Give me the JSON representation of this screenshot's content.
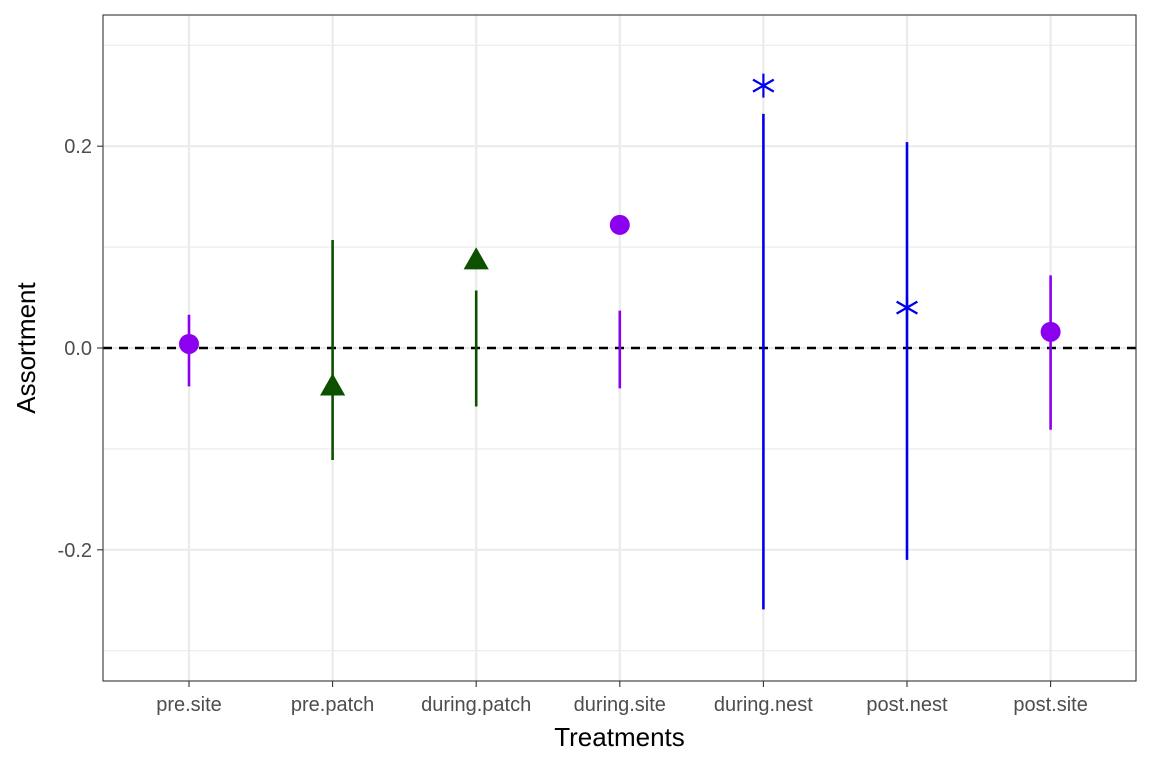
{
  "chart_data": {
    "type": "scatter",
    "xlabel": "Treatments",
    "ylabel": "Assortment",
    "ylim": [
      -0.33,
      0.33
    ],
    "y_ticks": [
      -0.2,
      0.0,
      0.2
    ],
    "y_tick_labels": [
      "-0.2",
      "0.0",
      "0.2"
    ],
    "y_minor_grid": [
      -0.3,
      -0.1,
      0.1,
      0.3
    ],
    "grid": true,
    "reference_line": {
      "y": 0.0,
      "style": "dashed",
      "color": "#000000"
    },
    "categories": [
      "pre.site",
      "pre.patch",
      "during.patch",
      "during.site",
      "during.nest",
      "post.nest",
      "post.site"
    ],
    "points": [
      {
        "category": "pre.site",
        "value": 0.004,
        "ci_low": -0.038,
        "ci_high": 0.033,
        "shape": "circle",
        "color": "#8B00EE"
      },
      {
        "category": "pre.patch",
        "value": -0.037,
        "ci_low": -0.111,
        "ci_high": 0.107,
        "shape": "triangle",
        "color": "#0B5100"
      },
      {
        "category": "during.patch",
        "value": 0.088,
        "ci_low": -0.058,
        "ci_high": 0.057,
        "shape": "triangle",
        "color": "#0B5100"
      },
      {
        "category": "during.site",
        "value": 0.122,
        "ci_low": -0.04,
        "ci_high": 0.037,
        "shape": "circle",
        "color": "#8B00EE"
      },
      {
        "category": "during.nest",
        "value": 0.26,
        "ci_low": -0.259,
        "ci_high": 0.232,
        "shape": "asterisk",
        "color": "#0000EE"
      },
      {
        "category": "post.nest",
        "value": 0.04,
        "ci_low": -0.21,
        "ci_high": 0.204,
        "shape": "asterisk",
        "color": "#0000EE"
      },
      {
        "category": "post.site",
        "value": 0.016,
        "ci_low": -0.081,
        "ci_high": 0.072,
        "shape": "circle",
        "color": "#8B00EE"
      }
    ],
    "legend": "none"
  }
}
